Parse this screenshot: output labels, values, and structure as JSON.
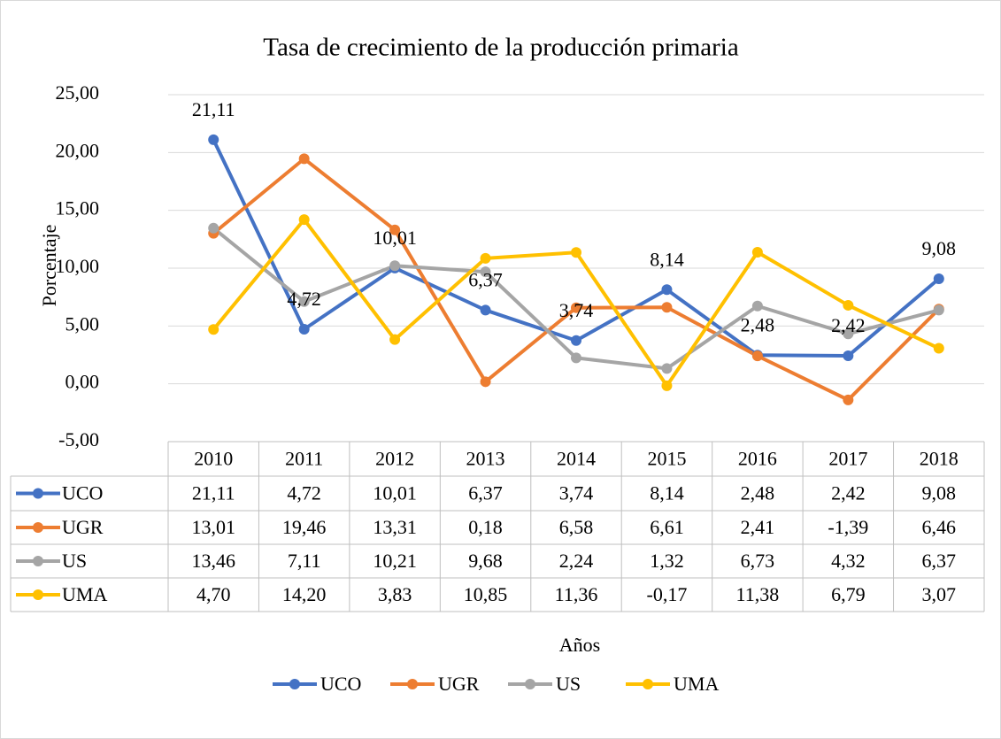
{
  "chart_data": {
    "type": "line",
    "title": "Tasa de crecimiento de la producción primaria",
    "y_label": "Porcentaje",
    "x_label": "Años",
    "categories": [
      "2010",
      "2011",
      "2012",
      "2013",
      "2014",
      "2015",
      "2016",
      "2017",
      "2018"
    ],
    "ylim": [
      -5,
      25
    ],
    "yticks": [
      {
        "value": -5,
        "label": "-5,00"
      },
      {
        "value": 0,
        "label": "0,00"
      },
      {
        "value": 5,
        "label": "5,00"
      },
      {
        "value": 10,
        "label": "10,00"
      },
      {
        "value": 15,
        "label": "15,00"
      },
      {
        "value": 20,
        "label": "20,00"
      },
      {
        "value": 25,
        "label": "25,00"
      }
    ],
    "grid": true,
    "legend": "bottom",
    "series": [
      {
        "name": "UCO",
        "color": "#4472c4",
        "values": [
          21.11,
          4.72,
          10.01,
          6.37,
          3.74,
          8.14,
          2.48,
          2.42,
          9.08
        ],
        "value_labels": [
          "21,11",
          "4,72",
          "10,01",
          "6,37",
          "3,74",
          "8,14",
          "2,48",
          "2,42",
          "9,08"
        ],
        "data_labels": true
      },
      {
        "name": "UGR",
        "color": "#ed7d31",
        "values": [
          13.01,
          19.46,
          13.31,
          0.18,
          6.58,
          6.61,
          2.41,
          -1.39,
          6.46
        ],
        "value_labels": [
          "13,01",
          "19,46",
          "13,31",
          "0,18",
          "6,58",
          "6,61",
          "2,41",
          "-1,39",
          "6,46"
        ]
      },
      {
        "name": "US",
        "color": "#a5a5a5",
        "values": [
          13.46,
          7.11,
          10.21,
          9.68,
          2.24,
          1.32,
          6.73,
          4.32,
          6.37
        ],
        "value_labels": [
          "13,46",
          "7,11",
          "10,21",
          "9,68",
          "2,24",
          "1,32",
          "6,73",
          "4,32",
          "6,37"
        ]
      },
      {
        "name": "UMA",
        "color": "#ffc000",
        "values": [
          4.7,
          14.2,
          3.83,
          10.85,
          11.36,
          -0.17,
          11.38,
          6.79,
          3.07
        ],
        "value_labels": [
          "4,70",
          "14,20",
          "3,83",
          "10,85",
          "11,36",
          "-0,17",
          "11,38",
          "6,79",
          "3,07"
        ]
      }
    ]
  }
}
